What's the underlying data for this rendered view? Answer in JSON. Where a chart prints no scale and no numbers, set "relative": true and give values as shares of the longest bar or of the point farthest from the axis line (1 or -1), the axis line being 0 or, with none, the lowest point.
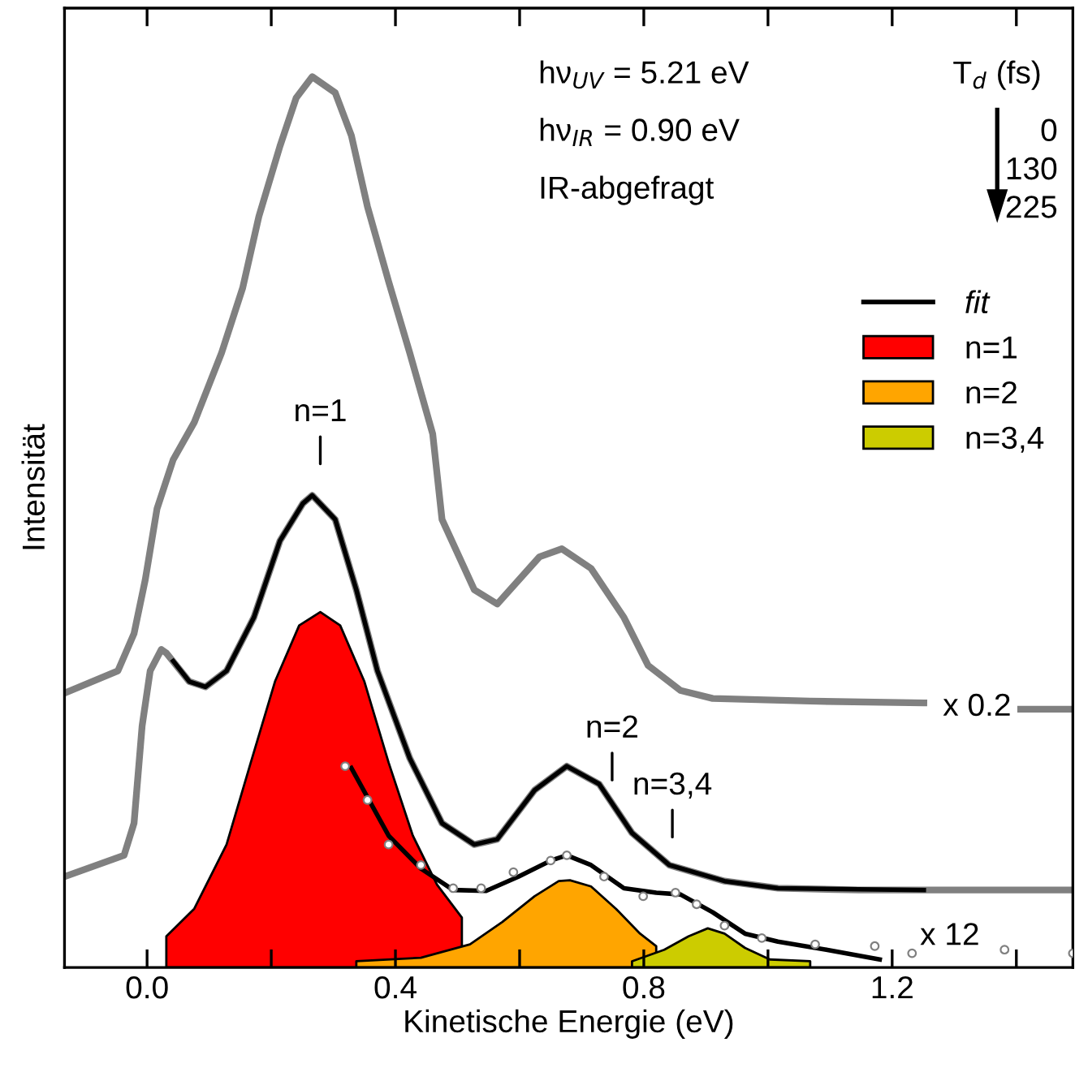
{
  "chart_data": {
    "type": "line",
    "xlabel": "Kinetische Energie (eV)",
    "ylabel": "Intensität",
    "relative": true,
    "xlim": [
      -0.133,
      1.491
    ],
    "xticks": [
      {
        "value": 0.0,
        "label": "0.0"
      },
      {
        "value": 0.2,
        "label": null
      },
      0.4,
      {
        "value": 0.6,
        "label": null
      },
      0.8,
      {
        "value": 1.0,
        "label": null
      },
      1.2,
      {
        "value": 1.4,
        "label": null
      }
    ],
    "legend": "right",
    "series": [
      {
        "color": "#808080",
        "x": [
          -0.133,
          -0.047,
          -0.021,
          -0.003,
          0.016,
          0.042,
          0.076,
          0.12,
          0.154,
          0.18,
          0.214,
          0.24,
          0.266,
          0.303,
          0.329,
          0.355,
          0.389,
          0.423,
          0.46,
          0.475,
          0.527,
          0.564,
          0.632,
          0.668,
          0.715,
          0.768,
          0.807,
          0.859,
          0.911,
          1.068,
          1.251,
          1.3,
          1.407,
          1.491
        ],
        "values": [
          0.308,
          0.333,
          0.375,
          0.435,
          0.515,
          0.57,
          0.612,
          0.69,
          0.763,
          0.843,
          0.922,
          0.976,
          1.0,
          0.982,
          0.934,
          0.854,
          0.77,
          0.69,
          0.599,
          0.503,
          0.424,
          0.408,
          0.461,
          0.47,
          0.448,
          0.393,
          0.339,
          0.311,
          0.302,
          0.299,
          0.297,
          null,
          0.29,
          0.29
        ]
      },
      {
        "color": "#808080",
        "x": [
          -0.133,
          -0.037,
          -0.021,
          -0.008,
          0.005,
          0.023,
          0.031,
          0.068,
          0.094,
          0.128,
          0.172,
          0.214,
          0.251,
          0.266,
          0.303,
          0.337,
          0.371,
          0.423,
          0.475,
          0.527,
          0.564,
          0.624,
          0.676,
          0.728,
          0.781,
          0.841,
          0.93,
          1.016,
          1.146,
          1.251,
          1.491
        ],
        "values": [
          0.102,
          0.126,
          0.162,
          0.271,
          0.333,
          0.357,
          0.353,
          0.321,
          0.315,
          0.333,
          0.393,
          0.479,
          0.521,
          0.53,
          0.503,
          0.424,
          0.333,
          0.235,
          0.162,
          0.138,
          0.144,
          0.199,
          0.226,
          0.206,
          0.151,
          0.115,
          0.097,
          0.089,
          0.087,
          0.087,
          0.087
        ]
      },
      {
        "name": "fit",
        "color": "#000000",
        "x": [
          0.042,
          0.068,
          0.094,
          0.128,
          0.172,
          0.214,
          0.251,
          0.266,
          0.303,
          0.337,
          0.371,
          0.423,
          0.475,
          0.527,
          0.564,
          0.624,
          0.676,
          0.728,
          0.781,
          0.841,
          0.93,
          1.016,
          1.251
        ],
        "values": [
          0.344,
          0.321,
          0.315,
          0.333,
          0.393,
          0.479,
          0.521,
          0.53,
          0.503,
          0.424,
          0.333,
          0.235,
          0.162,
          0.138,
          0.144,
          0.199,
          0.226,
          0.206,
          0.151,
          0.115,
          0.097,
          0.089,
          0.087
        ]
      },
      {
        "type": "area",
        "name": "n=1",
        "color": "#ff0000",
        "x": [
          0.031,
          0.076,
          0.128,
          0.167,
          0.206,
          0.245,
          0.279,
          0.311,
          0.35,
          0.389,
          0.428,
          0.467,
          0.507
        ],
        "values": [
          0.035,
          0.066,
          0.138,
          0.23,
          0.321,
          0.384,
          0.399,
          0.384,
          0.321,
          0.23,
          0.148,
          0.093,
          0.056
        ]
      },
      {
        "type": "area",
        "name": "n=2",
        "color": "#ffa500",
        "x": [
          0.337,
          0.441,
          0.52,
          0.572,
          0.624,
          0.663,
          0.681,
          0.715,
          0.755,
          0.794,
          0.82
        ],
        "values": [
          0.007,
          0.011,
          0.026,
          0.051,
          0.08,
          0.097,
          0.098,
          0.091,
          0.066,
          0.038,
          0.024
        ]
      },
      {
        "type": "area",
        "name": "n=3,4",
        "color": "#cccc00",
        "x": [
          0.781,
          0.833,
          0.872,
          0.903,
          0.93,
          0.963,
          1.003,
          1.068
        ],
        "values": [
          0.007,
          0.02,
          0.035,
          0.044,
          0.038,
          0.022,
          0.009,
          0.007
        ]
      },
      {
        "type": "scatter",
        "marker": "circle",
        "color": "#808080",
        "x": [
          0.319,
          0.355,
          0.389,
          0.441,
          0.493,
          0.538,
          0.59,
          0.65,
          0.676,
          0.736,
          0.799,
          0.851,
          0.885,
          0.93,
          0.99,
          1.076,
          1.172,
          1.232,
          1.381,
          1.491
        ],
        "values": [
          0.226,
          0.188,
          0.138,
          0.115,
          0.089,
          0.089,
          0.107,
          0.12,
          0.126,
          0.102,
          0.08,
          0.084,
          0.071,
          0.047,
          0.033,
          0.026,
          0.024,
          0.016,
          0.02,
          0.016
        ]
      },
      {
        "color": "#000000",
        "x": [
          0.329,
          0.389,
          0.441,
          0.493,
          0.546,
          0.598,
          0.65,
          0.676,
          0.715,
          0.768,
          0.82,
          0.859,
          0.911,
          0.963,
          1.016,
          1.094,
          1.18
        ],
        "values": [
          0.224,
          0.148,
          0.111,
          0.087,
          0.086,
          0.102,
          0.12,
          0.126,
          0.115,
          0.089,
          0.084,
          0.082,
          0.062,
          0.038,
          0.029,
          0.02,
          0.009
        ]
      }
    ],
    "annotations": [
      "hν$_{UV}$ = 5.21 eV",
      "hν$_{IR}$ = 0.90 eV",
      "IR-abgefragt",
      "T$_{d}$ (fs)",
      "0",
      "130",
      "225",
      "x 0.2",
      "x 12",
      {
        "text": "n=1",
        "x": 0.279,
        "y": 0.53
      },
      {
        "text": "n=2",
        "x": 0.749,
        "y": 0.175
      },
      {
        "text": "n=3,4",
        "x": 0.846,
        "y": 0.111
      }
    ]
  }
}
